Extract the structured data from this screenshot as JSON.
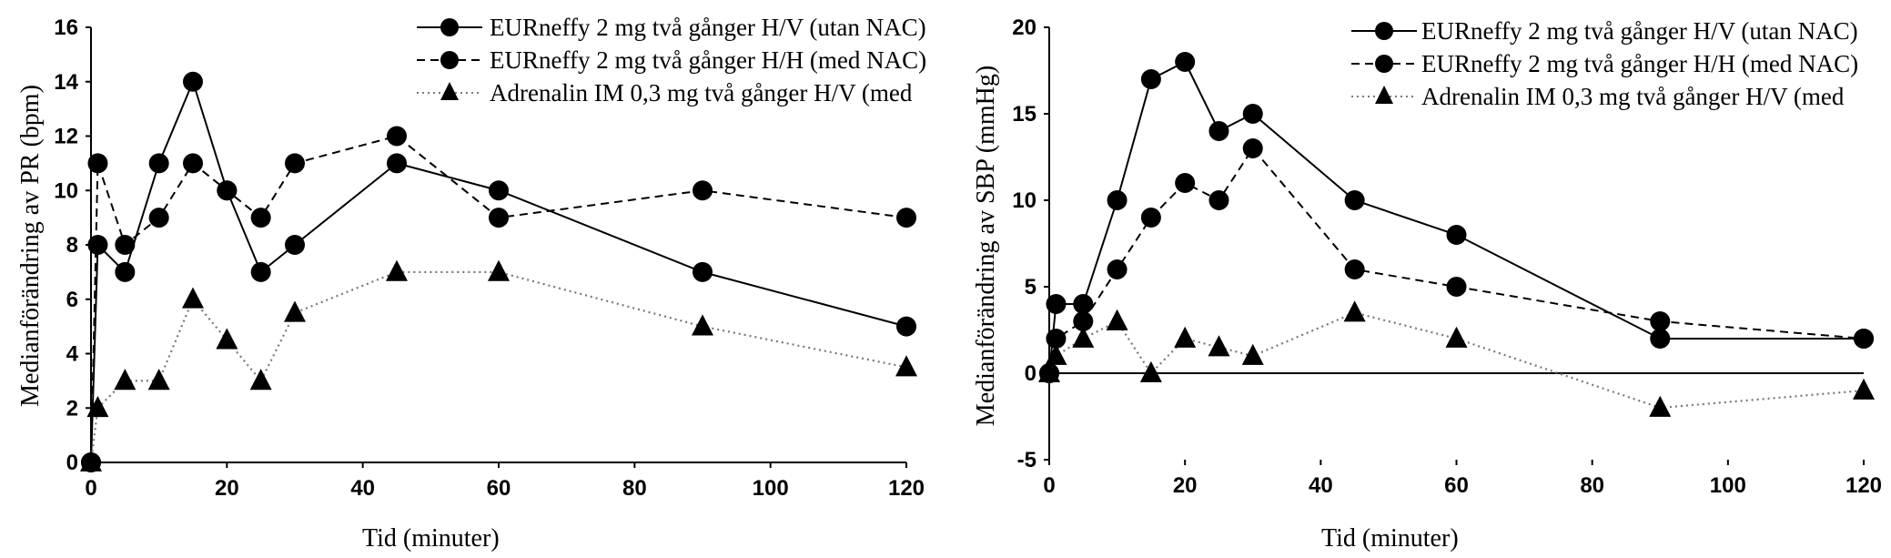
{
  "chart_data": [
    {
      "type": "line",
      "title": "",
      "xlabel": "Tid (minuter)",
      "ylabel": "Medianförändring av PR (bpm)",
      "xlim": [
        0,
        120
      ],
      "ylim": [
        0,
        16
      ],
      "xticks": [
        0,
        20,
        40,
        60,
        80,
        100,
        120
      ],
      "yticks": [
        0,
        2,
        4,
        6,
        8,
        10,
        12,
        14,
        16
      ],
      "legend_position": "top-right",
      "series": [
        {
          "name": "EURneffy 2 mg två gånger H/V (utan NAC)",
          "style": "solid",
          "marker": "circle",
          "x": [
            0,
            1,
            5,
            10,
            15,
            20,
            25,
            30,
            45,
            60,
            90,
            120
          ],
          "y": [
            0,
            8,
            7,
            11,
            14,
            10,
            7,
            8,
            11,
            10,
            7,
            5
          ]
        },
        {
          "name": "EURneffy 2 mg två gånger H/H (med NAC)",
          "style": "dashed",
          "marker": "circle",
          "x": [
            0,
            1,
            5,
            10,
            15,
            20,
            25,
            30,
            45,
            60,
            90,
            120
          ],
          "y": [
            0,
            11,
            8,
            9,
            11,
            10,
            9,
            11,
            12,
            9,
            10,
            9
          ]
        },
        {
          "name": "Adrenalin IM 0,3 mg två gånger H/V (med",
          "style": "dotted",
          "marker": "triangle",
          "x": [
            0,
            1,
            5,
            10,
            15,
            20,
            25,
            30,
            45,
            60,
            90,
            120
          ],
          "y": [
            0,
            2,
            3,
            3,
            6,
            4.5,
            3,
            5.5,
            7,
            7,
            5,
            3.5
          ]
        }
      ]
    },
    {
      "type": "line",
      "title": "",
      "xlabel": "Tid (minuter)",
      "ylabel": "Medianförändring av SBP (mmHg)",
      "xlim": [
        0,
        120
      ],
      "ylim": [
        -5,
        20
      ],
      "xticks": [
        0,
        20,
        40,
        60,
        80,
        100,
        120
      ],
      "yticks": [
        -5,
        0,
        5,
        10,
        15,
        20
      ],
      "legend_position": "top-right",
      "series": [
        {
          "name": "EURneffy 2 mg två gånger H/V (utan NAC)",
          "style": "solid",
          "marker": "circle",
          "x": [
            0,
            1,
            5,
            10,
            15,
            20,
            25,
            30,
            45,
            60,
            90,
            120
          ],
          "y": [
            0,
            4,
            4,
            10,
            17,
            18,
            14,
            15,
            10,
            8,
            2,
            2
          ]
        },
        {
          "name": "EURneffy 2 mg två gånger H/H (med NAC)",
          "style": "dashed",
          "marker": "circle",
          "x": [
            0,
            1,
            5,
            10,
            15,
            20,
            25,
            30,
            45,
            60,
            90,
            120
          ],
          "y": [
            0,
            2,
            3,
            6,
            9,
            11,
            10,
            13,
            6,
            5,
            3,
            2
          ]
        },
        {
          "name": "Adrenalin IM 0,3 mg två gånger H/V (med",
          "style": "dotted",
          "marker": "triangle",
          "x": [
            0,
            1,
            5,
            10,
            15,
            20,
            25,
            30,
            45,
            60,
            90,
            120
          ],
          "y": [
            0,
            1,
            2,
            3,
            0,
            2,
            1.5,
            1,
            3.5,
            2,
            -2,
            -1
          ]
        }
      ]
    }
  ]
}
